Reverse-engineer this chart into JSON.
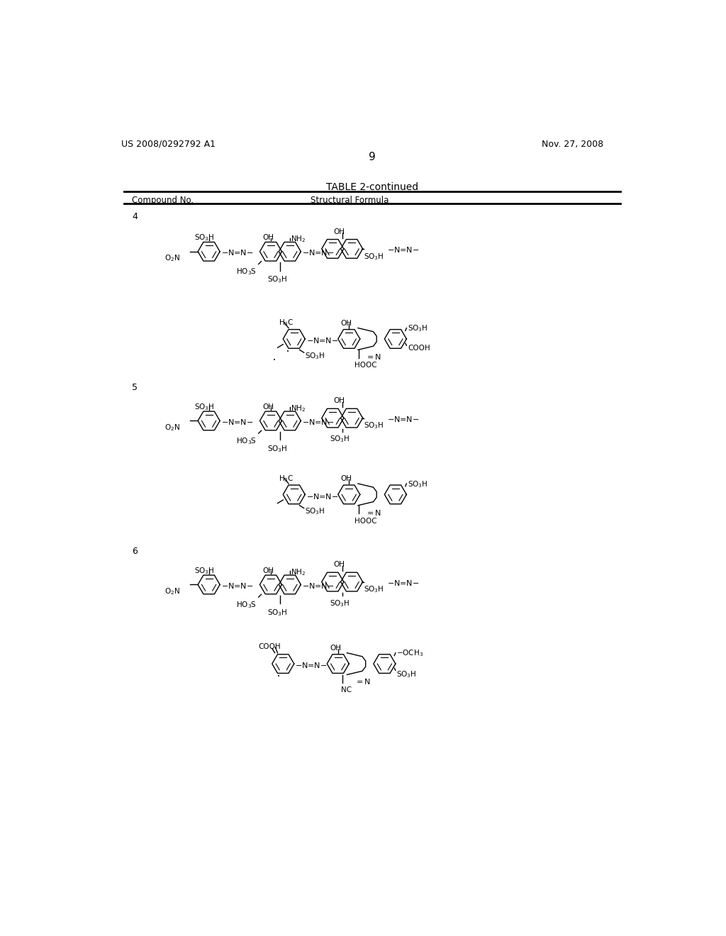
{
  "page_header_left": "US 2008/0292792 A1",
  "page_header_right": "Nov. 27, 2008",
  "page_number": "9",
  "table_title": "TABLE 2-continued",
  "col1_header": "Compound No.",
  "col2_header": "Structural Formula",
  "background_color": "#f0f0f0",
  "text_color": "#000000",
  "figsize": [
    10.24,
    13.2
  ],
  "dpi": 100
}
